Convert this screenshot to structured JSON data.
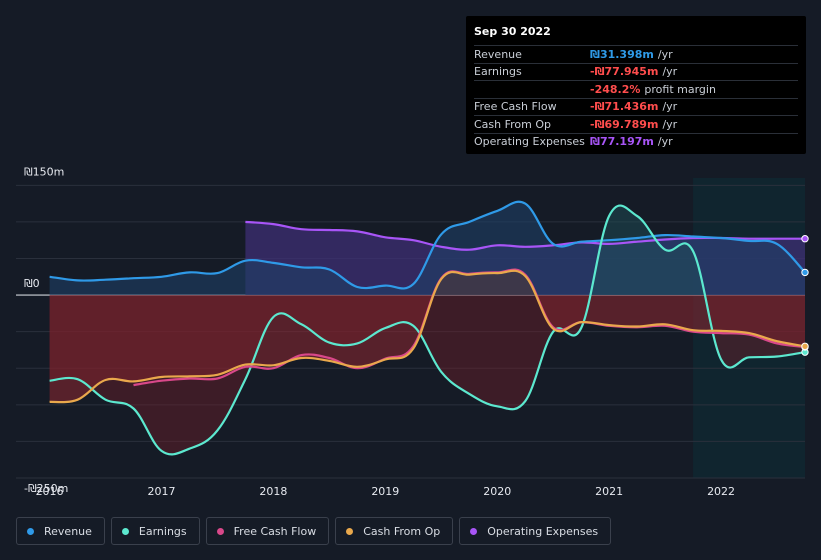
{
  "colors": {
    "revenue": "#2f9ae8",
    "earnings": "#5ce8cf",
    "fcf": "#d9488a",
    "cfo": "#e9a84c",
    "opex": "#a855f7",
    "negative": "#ff4d4d"
  },
  "tooltip": {
    "date": "Sep 30 2022",
    "rows": [
      {
        "label": "Revenue",
        "value": "₪31.398m",
        "unit": "/yr",
        "color": "#2f9ae8"
      },
      {
        "label": "Earnings",
        "value": "-₪77.945m",
        "unit": "/yr",
        "color": "#ff4d4d"
      },
      {
        "label": "",
        "value": "-248.2%",
        "unit": "profit margin",
        "color": "#ff4d4d"
      },
      {
        "label": "Free Cash Flow",
        "value": "-₪71.436m",
        "unit": "/yr",
        "color": "#ff4d4d"
      },
      {
        "label": "Cash From Op",
        "value": "-₪69.789m",
        "unit": "/yr",
        "color": "#ff4d4d"
      },
      {
        "label": "Operating Expenses",
        "value": "₪77.197m",
        "unit": "/yr",
        "color": "#a855f7"
      }
    ]
  },
  "legend": [
    {
      "label": "Revenue",
      "color": "#2f9ae8"
    },
    {
      "label": "Earnings",
      "color": "#5ce8cf"
    },
    {
      "label": "Free Cash Flow",
      "color": "#d9488a"
    },
    {
      "label": "Cash From Op",
      "color": "#e9a84c"
    },
    {
      "label": "Operating Expenses",
      "color": "#a855f7"
    }
  ],
  "chart_data": {
    "type": "area",
    "ylim": [
      -250,
      150
    ],
    "y_tick_labels": [
      "₪150m",
      "₪0",
      "-₪250m"
    ],
    "y_tick_values": [
      150,
      0,
      -250
    ],
    "x_tick_labels": [
      "2016",
      "2017",
      "2018",
      "2019",
      "2020",
      "2021",
      "2022"
    ],
    "x_tick_values": [
      2016,
      2017,
      2018,
      2019,
      2020,
      2021,
      2022
    ],
    "xlim": [
      2015.7,
      2022.75
    ],
    "highlight_from": 2021.75,
    "series": [
      {
        "name": "Revenue",
        "key": "revenue",
        "x": [
          2016.0,
          2016.25,
          2016.5,
          2016.75,
          2017.0,
          2017.25,
          2017.5,
          2017.75,
          2018.0,
          2018.25,
          2018.5,
          2018.75,
          2019.0,
          2019.25,
          2019.5,
          2019.75,
          2020.0,
          2020.25,
          2020.5,
          2020.75,
          2021.0,
          2021.25,
          2021.5,
          2021.75,
          2022.0,
          2022.25,
          2022.5,
          2022.75
        ],
        "values": [
          25,
          20,
          21,
          23,
          25,
          31,
          30,
          47,
          44,
          38,
          35,
          11,
          13,
          15,
          83,
          100,
          115,
          125,
          70,
          73,
          75,
          78,
          82,
          80,
          78,
          74,
          70,
          31
        ]
      },
      {
        "name": "Earnings",
        "key": "earnings",
        "x": [
          2016.0,
          2016.25,
          2016.5,
          2016.75,
          2017.0,
          2017.25,
          2017.5,
          2017.75,
          2018.0,
          2018.25,
          2018.5,
          2018.75,
          2019.0,
          2019.25,
          2019.5,
          2019.75,
          2020.0,
          2020.25,
          2020.5,
          2020.75,
          2021.0,
          2021.25,
          2021.5,
          2021.75,
          2022.0,
          2022.25,
          2022.5,
          2022.75
        ],
        "values": [
          -117,
          -115,
          -143,
          -155,
          -213,
          -210,
          -185,
          -115,
          -30,
          -40,
          -65,
          -66,
          -45,
          -42,
          -105,
          -135,
          -152,
          -145,
          -50,
          -45,
          108,
          108,
          62,
          60,
          -88,
          -85,
          -84,
          -78
        ]
      },
      {
        "name": "Free Cash Flow",
        "key": "fcf",
        "x": [
          2016.75,
          2017.0,
          2017.25,
          2017.5,
          2017.75,
          2018.0,
          2018.25,
          2018.5,
          2018.75,
          2019.0,
          2019.25,
          2019.5,
          2019.75,
          2020.0,
          2020.25,
          2020.5,
          2020.75,
          2021.0,
          2021.25,
          2021.5,
          2021.75,
          2022.0,
          2022.25,
          2022.5,
          2022.75
        ],
        "values": [
          -123,
          -117,
          -114,
          -114,
          -98,
          -100,
          -82,
          -86,
          -100,
          -87,
          -70,
          23,
          29,
          31,
          28,
          -44,
          -37,
          -42,
          -44,
          -42,
          -50,
          -52,
          -54,
          -66,
          -71
        ]
      },
      {
        "name": "Cash From Op",
        "key": "cfo",
        "x": [
          2016.0,
          2016.25,
          2016.5,
          2016.75,
          2017.0,
          2017.25,
          2017.5,
          2017.75,
          2018.0,
          2018.25,
          2018.5,
          2018.75,
          2019.0,
          2019.25,
          2019.5,
          2019.75,
          2020.0,
          2020.25,
          2020.5,
          2020.75,
          2021.0,
          2021.25,
          2021.5,
          2021.75,
          2022.0,
          2022.25,
          2022.5,
          2022.75
        ],
        "values": [
          -146,
          -143,
          -116,
          -118,
          -112,
          -111,
          -109,
          -95,
          -96,
          -86,
          -90,
          -98,
          -88,
          -73,
          22,
          28,
          30,
          26,
          -46,
          -37,
          -41,
          -43,
          -40,
          -48,
          -49,
          -52,
          -63,
          -70
        ]
      },
      {
        "name": "Operating Expenses",
        "key": "opex",
        "x": [
          2017.75,
          2018.0,
          2018.25,
          2018.5,
          2018.75,
          2019.0,
          2019.25,
          2019.5,
          2019.75,
          2020.0,
          2020.25,
          2020.5,
          2020.75,
          2021.0,
          2021.25,
          2021.5,
          2021.75,
          2022.0,
          2022.25,
          2022.5,
          2022.75
        ],
        "values": [
          100,
          97,
          90,
          89,
          87,
          79,
          75,
          66,
          62,
          68,
          66,
          68,
          72,
          70,
          73,
          76,
          78,
          78,
          77,
          77,
          77
        ]
      }
    ]
  }
}
